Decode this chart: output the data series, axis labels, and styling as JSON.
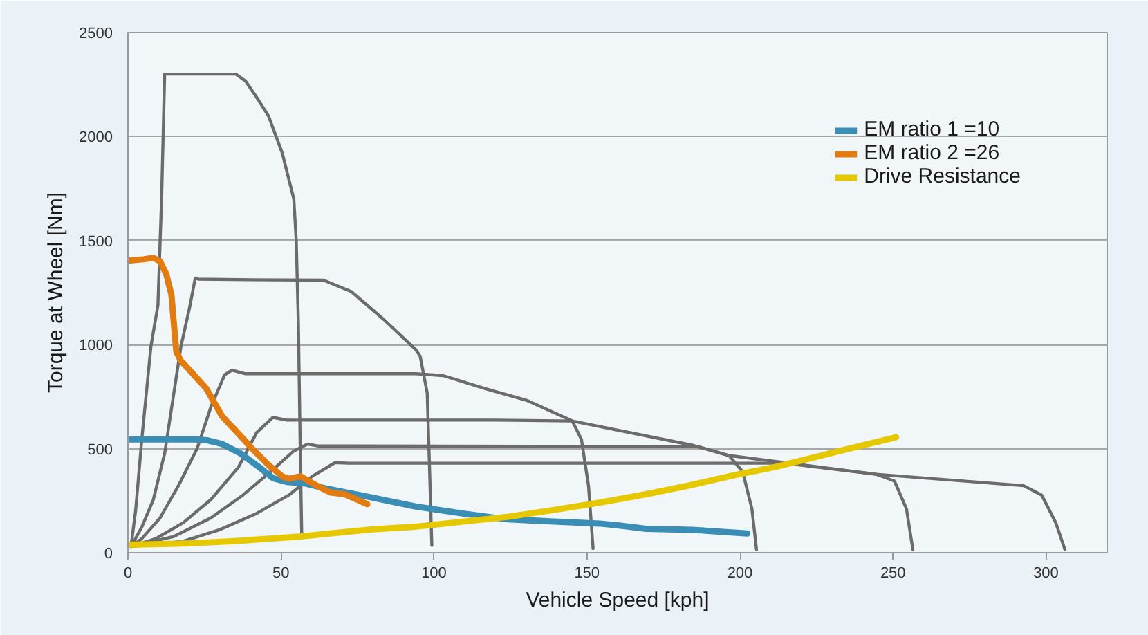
{
  "chart_data": {
    "type": "line",
    "xlabel": "Vehicle Speed [kph]",
    "ylabel": "Torque at Wheel [Nm]",
    "xlim": [
      0,
      320
    ],
    "ylim": [
      0,
      2500
    ],
    "xticks": [
      0,
      50,
      100,
      150,
      200,
      250,
      300
    ],
    "yticks": [
      0,
      500,
      1000,
      1500,
      2000,
      2500
    ],
    "grid": "y",
    "legend": "top right",
    "series": [
      {
        "color": "#6b6b6b",
        "x": [
          1,
          2.5,
          4.5,
          7.5,
          9.8,
          11,
          12,
          35.3,
          38.4,
          42,
          45.9,
          50.4,
          54.2,
          55,
          55.7,
          56.3,
          56.8
        ],
        "values": [
          30,
          200,
          540,
          990,
          1190,
          1700,
          2300,
          2300,
          2267,
          2190,
          2100,
          1922,
          1700,
          1500,
          1100,
          500,
          75
        ]
      },
      {
        "color": "#6b6b6b",
        "x": [
          1,
          4.5,
          8.3,
          12,
          15,
          17.3,
          20.3,
          22,
          23,
          40,
          63.9,
          73,
          83.5,
          94,
          95.5,
          97.8,
          98.5,
          99.3
        ],
        "values": [
          30,
          122,
          255,
          477,
          767,
          989,
          1189,
          1320,
          1315,
          1312,
          1310,
          1255,
          1122,
          977,
          944,
          767,
          433,
          35
        ]
      },
      {
        "color": "#6b6b6b",
        "x": [
          1,
          4.5,
          10.5,
          16.5,
          22.6,
          27.1,
          31.6,
          34,
          38.4,
          60,
          94,
          103,
          116.6,
          130.2,
          145.2,
          148.2,
          150.5,
          152
        ],
        "values": [
          30,
          67,
          167,
          322,
          500,
          700,
          855,
          877,
          860,
          860,
          860,
          851,
          789,
          733,
          633,
          544,
          322,
          20
        ]
      },
      {
        "color": "#6b6b6b",
        "x": [
          1,
          9,
          18.1,
          27.1,
          36.1,
          42.1,
          47.4,
          52,
          80,
          120,
          145.2,
          184.3,
          196.4,
          200.9,
          203.9,
          205.4
        ],
        "values": [
          30,
          67,
          144,
          255,
          411,
          578,
          650,
          637,
          637,
          637,
          633,
          517,
          467,
          389,
          211,
          15
        ]
      },
      {
        "color": "#6b6b6b",
        "x": [
          1,
          15,
          27.1,
          37.6,
          46.6,
          54.2,
          58.7,
          62,
          150,
          186,
          196.4,
          214.4,
          244.5,
          250.5,
          254.4,
          256.5
        ],
        "values": [
          30,
          78,
          167,
          277,
          389,
          489,
          522,
          513,
          511,
          511,
          467,
          433,
          377,
          344,
          211,
          15
        ]
      },
      {
        "color": "#6b6b6b",
        "x": [
          1,
          18.1,
          30.1,
          42.1,
          52.6,
          60.2,
          67.7,
          72,
          150,
          214.4,
          244.5,
          292.7,
          298.6,
          303.2,
          306.2
        ],
        "values": [
          30,
          55,
          111,
          189,
          277,
          367,
          433,
          430,
          430,
          430,
          377,
          322,
          277,
          144,
          15
        ]
      },
      {
        "name": "EM ratio 1 =10",
        "color": "#3a8db5",
        "x": [
          0,
          10,
          21.8,
          26,
          30.8,
          36.8,
          42.9,
          47.4,
          51.9,
          57.9,
          63.9,
          79,
          94,
          109,
          124.1,
          139.2,
          154.2,
          162,
          169.3,
          184.3,
          202.4
        ],
        "values": [
          544,
          544,
          544,
          540,
          522,
          477,
          411,
          358,
          340,
          333,
          311,
          267,
          222,
          189,
          160,
          150,
          140,
          128,
          115,
          110,
          92
        ]
      },
      {
        "name": "EM ratio 2 =26",
        "color": "#e27c10",
        "x": [
          0,
          5,
          8.3,
          10.5,
          12.5,
          14.2,
          15.8,
          17.3,
          20,
          25.6,
          30.8,
          35,
          40.6,
          45.9,
          50.4,
          52.6,
          56.4,
          61.7,
          66.2,
          70.7,
          78.2
        ],
        "values": [
          1404,
          1410,
          1417,
          1400,
          1340,
          1240,
          967,
          922,
          880,
          789,
          655,
          590,
          500,
          422,
          367,
          355,
          367,
          322,
          289,
          282,
          233
        ]
      },
      {
        "name": "Drive Resistance",
        "color": "#e6c800",
        "x": [
          0,
          20,
          34,
          56,
          79,
          94,
          110,
          124,
          139,
          154,
          169,
          184,
          199,
          211,
          222,
          237,
          251
        ],
        "values": [
          38,
          45,
          55,
          77,
          111,
          125,
          150,
          172,
          205,
          240,
          280,
          325,
          375,
          410,
          450,
          505,
          555
        ]
      }
    ]
  }
}
